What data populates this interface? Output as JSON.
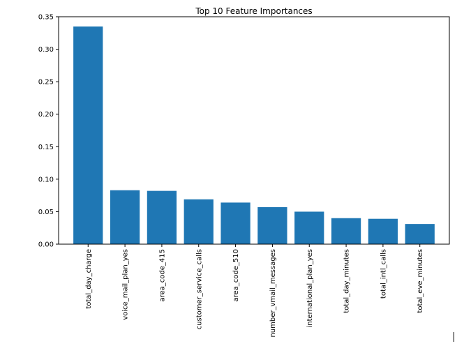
{
  "chart_data": {
    "type": "bar",
    "title": "Top 10 Feature Importances",
    "xlabel": "",
    "ylabel": "",
    "categories": [
      "total_day_charge",
      "voice_mail_plan_yes",
      "area_code_415",
      "customer_service_calls",
      "area_code_510",
      "number_vmail_messages",
      "international_plan_yes",
      "total_day_minutes",
      "total_intl_calls",
      "total_eve_minutes"
    ],
    "values": [
      0.335,
      0.083,
      0.082,
      0.069,
      0.064,
      0.057,
      0.05,
      0.04,
      0.039,
      0.031
    ],
    "ylim": [
      0,
      0.35
    ],
    "yticks": [
      "0.00",
      "0.05",
      "0.10",
      "0.15",
      "0.20",
      "0.25",
      "0.30",
      "0.35"
    ],
    "bar_color": "#1f77b4",
    "grid": false,
    "legend": "none"
  }
}
